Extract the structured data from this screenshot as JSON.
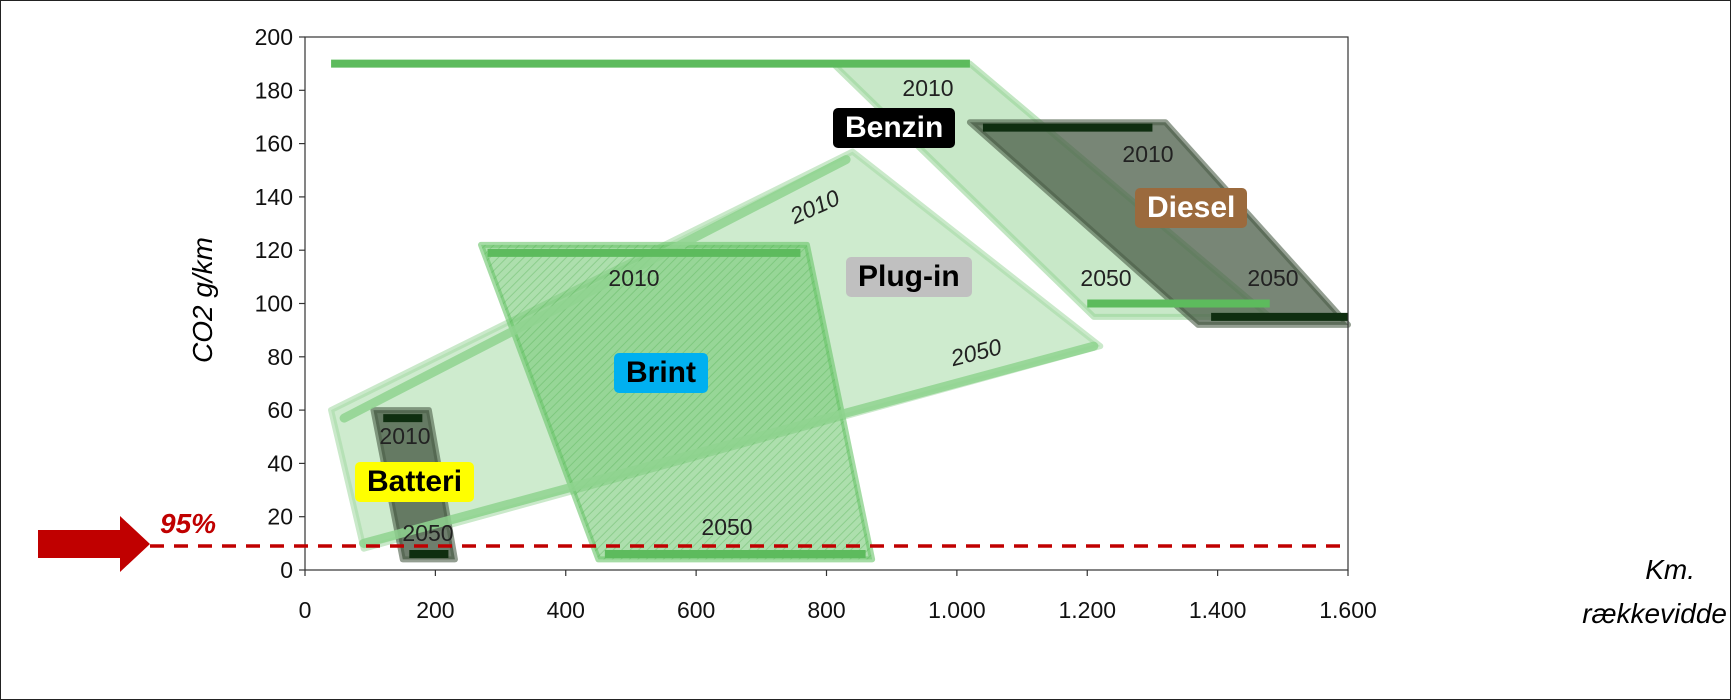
{
  "chart_data": {
    "type": "area",
    "ylabel": "CO2 g/km",
    "xlabel": "Km. rækkevidde",
    "xlabel_line1": "Km.",
    "xlabel_line2": "rækkevidde",
    "xlim": [
      0,
      1600
    ],
    "ylim": [
      0,
      200
    ],
    "x_tick_labels": [
      "0",
      "200",
      "400",
      "600",
      "800",
      "1.000",
      "1.200",
      "1.400",
      "1.600"
    ],
    "y_tick_labels": [
      "0",
      "20",
      "40",
      "60",
      "80",
      "100",
      "120",
      "140",
      "160",
      "180",
      "200"
    ],
    "target": {
      "label": "95%",
      "y": 9,
      "color": "#c00000"
    },
    "series": [
      {
        "name": "Benzin",
        "label_bg": "#000000",
        "label_fg": "#ffffff",
        "year_2010": {
          "x_start": 40,
          "x_end": 1020,
          "y": 190
        },
        "year_2050": {
          "x_start": 1200,
          "x_end": 1480,
          "y": 100
        },
        "region": [
          [
            810,
            190
          ],
          [
            1020,
            190
          ],
          [
            1480,
            95
          ],
          [
            1210,
            95
          ]
        ]
      },
      {
        "name": "Diesel",
        "label_bg": "#9b6a3d",
        "label_fg": "#ffffff",
        "year_2010": {
          "x_start": 1040,
          "x_end": 1300,
          "y": 166
        },
        "year_2050": {
          "x_start": 1390,
          "x_end": 1600,
          "y": 95
        },
        "region": [
          [
            1020,
            168
          ],
          [
            1320,
            168
          ],
          [
            1600,
            92
          ],
          [
            1370,
            92
          ]
        ]
      },
      {
        "name": "Plug-in",
        "label_bg": "#c0c0c0",
        "label_fg": "#000000",
        "year_2010": {
          "x_start": 60,
          "x_end": 830,
          "y_start": 57,
          "y_end": 154
        },
        "year_2050": {
          "x_start": 90,
          "x_end": 1210,
          "y_start": 10,
          "y_end": 84
        },
        "region": [
          [
            40,
            60
          ],
          [
            840,
            157
          ],
          [
            1220,
            84
          ],
          [
            90,
            8
          ]
        ]
      },
      {
        "name": "Brint",
        "label_bg": "#00b0f0",
        "label_fg": "#000000",
        "year_2010": {
          "x_start": 280,
          "x_end": 760,
          "y": 119
        },
        "year_2050": {
          "x_start": 460,
          "x_end": 860,
          "y": 6
        },
        "region": [
          [
            270,
            122
          ],
          [
            770,
            122
          ],
          [
            870,
            4
          ],
          [
            450,
            4
          ]
        ]
      },
      {
        "name": "Batteri",
        "label_bg": "#ffff00",
        "label_fg": "#000000",
        "year_2010": {
          "x_start": 120,
          "x_end": 180,
          "y": 57
        },
        "year_2050": {
          "x_start": 160,
          "x_end": 220,
          "y": 6
        },
        "region": [
          [
            105,
            60
          ],
          [
            190,
            60
          ],
          [
            230,
            4
          ],
          [
            150,
            4
          ]
        ]
      }
    ],
    "year_labels": {
      "y2010": "2010",
      "y2050": "2050"
    }
  }
}
